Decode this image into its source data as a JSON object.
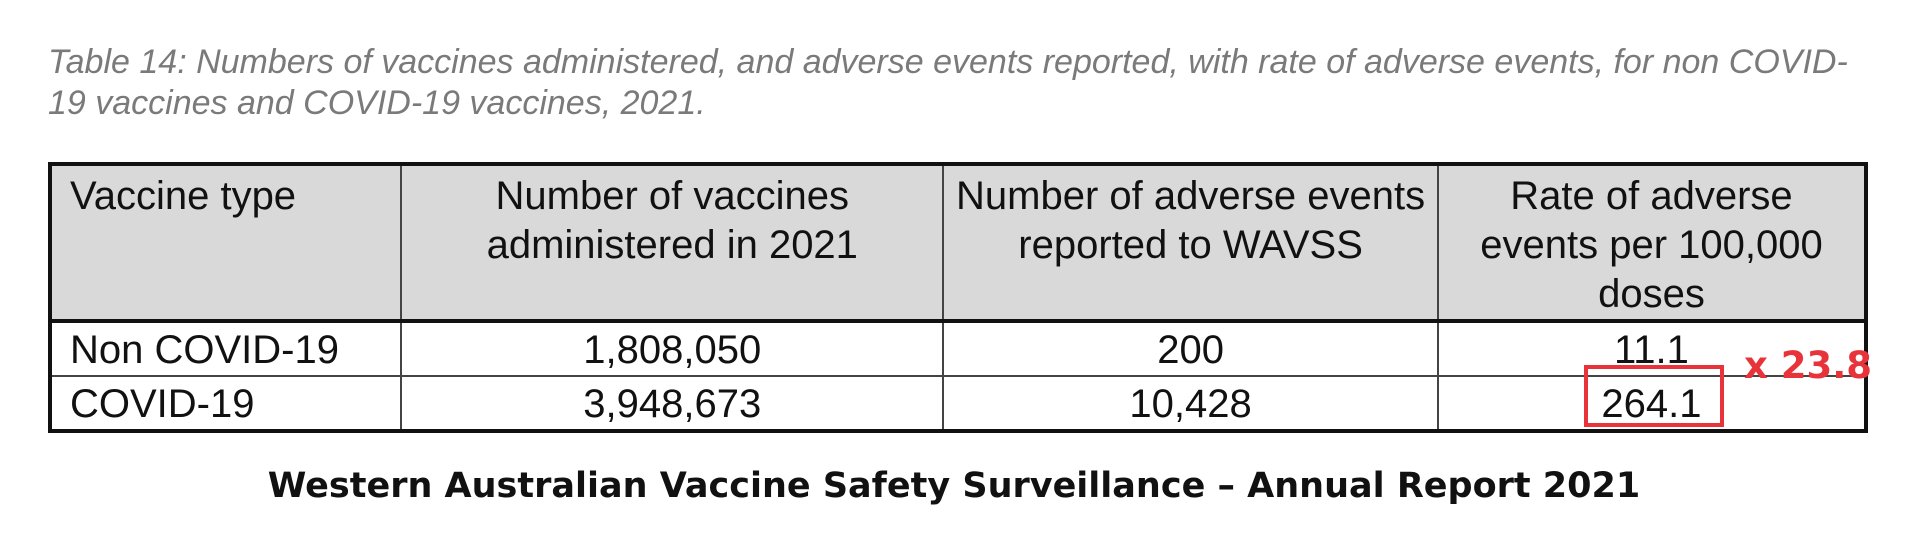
{
  "caption": "Table 14: Numbers of vaccines administered, and adverse events reported, with rate of adverse events, for non COVID-19 vaccines and COVID-19 vaccines, 2021.",
  "table": {
    "headers": [
      "Vaccine type",
      "Number of vaccines administered in 2021",
      "Number of adverse events reported to WAVSS",
      "Rate of adverse events per 100,000 doses"
    ],
    "rows": [
      [
        "Non COVID-19",
        "1,808,050",
        "200",
        "11.1"
      ],
      [
        "COVID-19",
        "3,948,673",
        "10,428",
        "264.1"
      ]
    ]
  },
  "annotation": {
    "multiplier": "x 23.8",
    "color": "#e8333a"
  },
  "footer_title": "Western Australian Vaccine Safety Surveillance – Annual Report 2021"
}
